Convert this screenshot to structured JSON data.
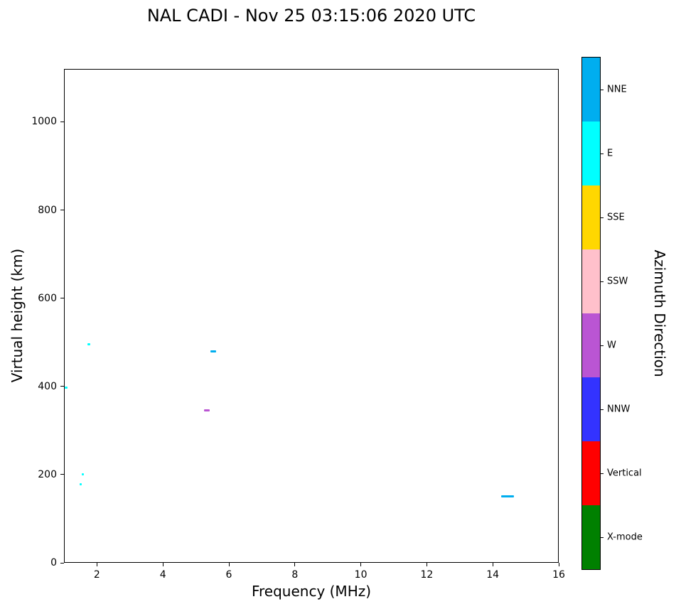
{
  "chart_data": {
    "type": "scatter",
    "title": "NAL CADI - Nov 25 03:15:06 2020 UTC",
    "xlabel": "Frequency (MHz)",
    "ylabel": "Virtual height (km)",
    "xlim": [
      1,
      16
    ],
    "ylim": [
      0,
      1120
    ],
    "x_ticks": [
      2,
      4,
      6,
      8,
      10,
      12,
      14,
      16
    ],
    "y_ticks": [
      0,
      200,
      400,
      600,
      800,
      1000
    ],
    "grid": false,
    "points": [
      {
        "f_start": 1.03,
        "f_end": 1.1,
        "height_km": 397,
        "direction": "E",
        "color": "#00FFFF"
      },
      {
        "f_start": 1.48,
        "f_end": 1.53,
        "height_km": 178,
        "direction": "E",
        "color": "#00FFFF"
      },
      {
        "f_start": 1.54,
        "f_end": 1.59,
        "height_km": 200,
        "direction": "E",
        "color": "#00FFFF"
      },
      {
        "f_start": 1.72,
        "f_end": 1.8,
        "height_km": 495,
        "direction": "E",
        "color": "#00FFFF"
      },
      {
        "f_start": 5.25,
        "f_end": 5.42,
        "height_km": 345,
        "direction": "W",
        "color": "#BA55D3"
      },
      {
        "f_start": 5.45,
        "f_end": 5.62,
        "height_km": 480,
        "direction": "NNE",
        "color": "#00AEEF"
      },
      {
        "f_start": 14.25,
        "f_end": 14.65,
        "height_km": 150,
        "direction": "NNE",
        "color": "#00AEEF"
      }
    ],
    "colorbar": {
      "label": "Azimuth Direction",
      "entries": [
        {
          "label": "NNE",
          "color": "#00AEEF"
        },
        {
          "label": "E",
          "color": "#00FFFF"
        },
        {
          "label": "SSE",
          "color": "#FFD700"
        },
        {
          "label": "SSW",
          "color": "#FFC0CB"
        },
        {
          "label": "W",
          "color": "#BA55D3"
        },
        {
          "label": "NNW",
          "color": "#3333FF"
        },
        {
          "label": "Vertical",
          "color": "#FF0000"
        },
        {
          "label": "X-mode",
          "color": "#008000"
        }
      ]
    }
  }
}
